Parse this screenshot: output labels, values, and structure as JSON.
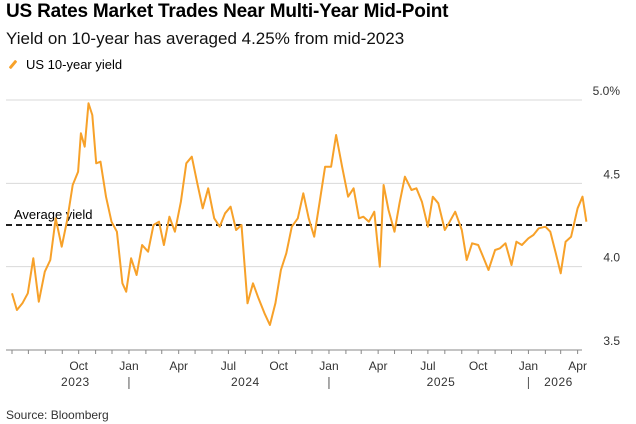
{
  "header": {
    "title": "US Rates Market Trades Near Multi-Year Mid-Point",
    "subtitle": "Yield on 10-year has averaged 4.25% from mid-2023",
    "legend_label": "US 10-year yield",
    "source": "Source: Bloomberg"
  },
  "colors": {
    "series": "#f7a129",
    "grid": "#d9d9d9",
    "average_line": "#000000"
  },
  "chart_data": {
    "type": "line",
    "x_tick_labels": [
      "Oct",
      "Jan",
      "Apr",
      "Jul",
      "Oct",
      "Jan",
      "Apr",
      "Jul",
      "Oct",
      "Jan",
      "Apr"
    ],
    "x_tick_dates": [
      "2023-10-01",
      "2024-01-01",
      "2024-04-01",
      "2024-07-01",
      "2024-10-01",
      "2025-01-01",
      "2025-04-01",
      "2025-07-01",
      "2025-10-01",
      "2026-01-01",
      "2026-04-01"
    ],
    "year_labels": [
      "2023",
      "2024",
      "2025",
      "2026"
    ],
    "y_tick_labels": [
      "5.0%",
      "4.5",
      "4.0",
      "3.5"
    ],
    "y_ticks": [
      5.0,
      4.5,
      4.0,
      3.5
    ],
    "ylim": [
      3.5,
      5.0
    ],
    "xlim": [
      "2023-06-01",
      "2026-04-20"
    ],
    "grid": "horizontal",
    "legend": "top-left",
    "average": {
      "label": "Average yield",
      "value": 4.25
    },
    "series": [
      {
        "name": "US 10-year yield",
        "x": [
          "2023-06-01",
          "2023-06-10",
          "2023-06-20",
          "2023-06-30",
          "2023-07-10",
          "2023-07-20",
          "2023-07-31",
          "2023-08-10",
          "2023-08-20",
          "2023-08-31",
          "2023-09-10",
          "2023-09-20",
          "2023-09-30",
          "2023-10-05",
          "2023-10-12",
          "2023-10-19",
          "2023-10-26",
          "2023-11-02",
          "2023-11-10",
          "2023-11-20",
          "2023-11-30",
          "2023-12-10",
          "2023-12-20",
          "2023-12-27",
          "2024-01-05",
          "2024-01-15",
          "2024-01-25",
          "2024-02-05",
          "2024-02-15",
          "2024-02-25",
          "2024-03-05",
          "2024-03-15",
          "2024-03-25",
          "2024-04-05",
          "2024-04-15",
          "2024-04-25",
          "2024-05-05",
          "2024-05-15",
          "2024-05-25",
          "2024-06-05",
          "2024-06-15",
          "2024-06-25",
          "2024-07-05",
          "2024-07-15",
          "2024-07-25",
          "2024-08-05",
          "2024-08-15",
          "2024-08-25",
          "2024-09-05",
          "2024-09-15",
          "2024-09-25",
          "2024-10-05",
          "2024-10-15",
          "2024-10-25",
          "2024-11-05",
          "2024-11-15",
          "2024-11-25",
          "2024-12-05",
          "2024-12-15",
          "2024-12-25",
          "2025-01-05",
          "2025-01-14",
          "2025-01-25",
          "2025-02-05",
          "2025-02-15",
          "2025-02-25",
          "2025-03-05",
          "2025-03-15",
          "2025-03-25",
          "2025-04-04",
          "2025-04-11",
          "2025-04-20",
          "2025-05-01",
          "2025-05-10",
          "2025-05-20",
          "2025-06-01",
          "2025-06-10",
          "2025-06-20",
          "2025-07-01",
          "2025-07-10",
          "2025-07-20",
          "2025-08-01",
          "2025-08-10",
          "2025-08-20",
          "2025-09-01",
          "2025-09-10",
          "2025-09-20",
          "2025-10-01",
          "2025-10-10",
          "2025-10-20",
          "2025-11-01",
          "2025-11-10",
          "2025-11-20",
          "2025-12-01",
          "2025-12-10",
          "2025-12-20",
          "2026-01-01",
          "2026-01-10",
          "2026-01-20",
          "2026-02-01",
          "2026-02-10",
          "2026-02-20",
          "2026-03-01",
          "2026-03-10",
          "2026-03-20",
          "2026-04-01",
          "2026-04-10",
          "2026-04-17"
        ],
        "values": [
          3.84,
          3.74,
          3.78,
          3.84,
          4.05,
          3.79,
          3.97,
          4.04,
          4.29,
          4.12,
          4.28,
          4.49,
          4.57,
          4.8,
          4.72,
          4.98,
          4.91,
          4.62,
          4.63,
          4.42,
          4.27,
          4.21,
          3.9,
          3.85,
          4.05,
          3.95,
          4.13,
          4.09,
          4.25,
          4.27,
          4.13,
          4.3,
          4.21,
          4.39,
          4.62,
          4.66,
          4.5,
          4.35,
          4.47,
          4.29,
          4.24,
          4.32,
          4.36,
          4.22,
          4.25,
          3.78,
          3.9,
          3.81,
          3.72,
          3.65,
          3.78,
          3.98,
          4.08,
          4.24,
          4.29,
          4.44,
          4.29,
          4.18,
          4.39,
          4.6,
          4.6,
          4.79,
          4.6,
          4.42,
          4.47,
          4.29,
          4.3,
          4.27,
          4.33,
          4.0,
          4.49,
          4.34,
          4.21,
          4.38,
          4.54,
          4.46,
          4.47,
          4.39,
          4.24,
          4.42,
          4.38,
          4.22,
          4.27,
          4.33,
          4.22,
          4.04,
          4.14,
          4.13,
          4.06,
          3.98,
          4.1,
          4.11,
          4.14,
          4.01,
          4.15,
          4.13,
          4.17,
          4.19,
          4.23,
          4.24,
          4.21,
          4.08,
          3.96,
          4.15,
          4.18,
          4.35,
          4.42,
          4.27
        ]
      }
    ]
  }
}
